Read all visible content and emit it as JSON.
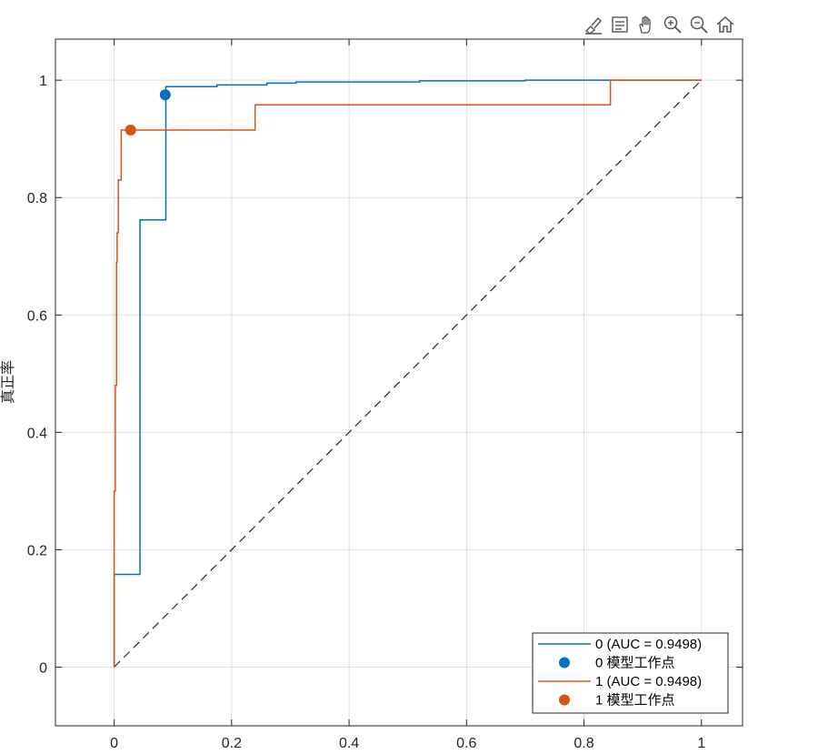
{
  "toolbar": {
    "buttons": [
      {
        "icon": "brush-icon"
      },
      {
        "icon": "data-tips-icon"
      },
      {
        "icon": "pan-hand-icon"
      },
      {
        "icon": "zoom-in-icon"
      },
      {
        "icon": "zoom-out-icon"
      },
      {
        "icon": "home-icon"
      }
    ]
  },
  "chart_data": {
    "type": "line",
    "title": "",
    "xlabel": "",
    "ylabel": "真正率",
    "xlim": [
      -0.1,
      1.07
    ],
    "ylim": [
      -0.1,
      1.07
    ],
    "xticks": [
      0,
      0.2,
      0.4,
      0.6,
      0.8,
      1
    ],
    "yticks": [
      0,
      0.2,
      0.4,
      0.6,
      0.8,
      1
    ],
    "xtick_labels": [
      "0",
      "0.2",
      "0.4",
      "0.6",
      "0.8",
      "1"
    ],
    "ytick_labels": [
      "0",
      "0.2",
      "0.4",
      "0.6",
      "0.8",
      "1"
    ],
    "grid": true,
    "legend_position": "bottom-right",
    "colors": {
      "series0": "#0072BD",
      "series1": "#D95319",
      "diagonal": "#262626",
      "axes": "#262626",
      "grid": "#dfdfdf"
    },
    "series": [
      {
        "name": "0 (AUC = 0.9498)",
        "kind": "line",
        "color": "#0072BD",
        "x": [
          0,
          0,
          0.044,
          0.044,
          0.088,
          0.088,
          0.175,
          0.175,
          0.26,
          0.26,
          0.31,
          0.31,
          0.52,
          0.52,
          0.7,
          0.7,
          0.845,
          0.845,
          1
        ],
        "y": [
          0,
          0.158,
          0.158,
          0.762,
          0.762,
          0.989,
          0.989,
          0.992,
          0.992,
          0.995,
          0.995,
          0.997,
          0.997,
          0.999,
          0.999,
          1.0,
          1.0,
          1.0,
          1.0
        ]
      },
      {
        "name": "0 模型工作点",
        "kind": "point",
        "color": "#0072BD",
        "x": [
          0.087
        ],
        "y": [
          0.975
        ]
      },
      {
        "name": "1 (AUC = 0.9498)",
        "kind": "line",
        "color": "#D95319",
        "x": [
          0,
          0,
          0.002,
          0.002,
          0.004,
          0.004,
          0.005,
          0.005,
          0.007,
          0.007,
          0.012,
          0.012,
          0.24,
          0.24,
          0.845,
          0.845,
          1
        ],
        "y": [
          0,
          0.3,
          0.3,
          0.48,
          0.48,
          0.69,
          0.69,
          0.74,
          0.74,
          0.83,
          0.83,
          0.915,
          0.915,
          0.958,
          0.958,
          1.0,
          1.0
        ]
      },
      {
        "name": "1 模型工作点",
        "kind": "point",
        "color": "#D95319",
        "x": [
          0.028
        ],
        "y": [
          0.915
        ]
      }
    ],
    "reference_line": {
      "x": [
        0,
        1
      ],
      "y": [
        0,
        1
      ],
      "style": "dashed"
    }
  }
}
